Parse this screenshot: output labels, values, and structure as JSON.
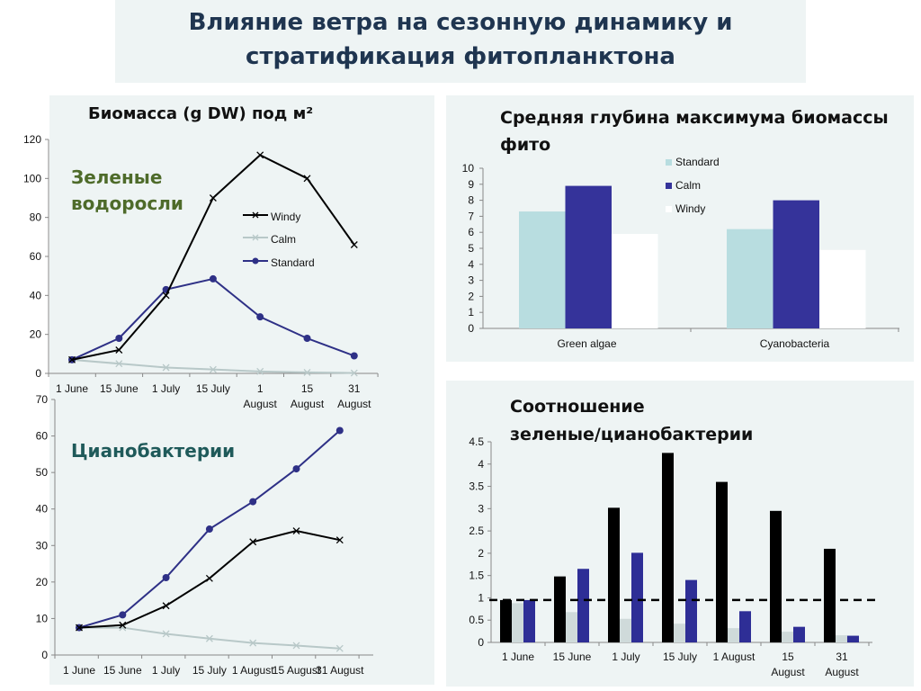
{
  "page": {
    "title_line1": "Влияние ветра на сезонную динамику и",
    "title_line2": "стратификация фитопланктона"
  },
  "colors": {
    "panel_bg": "#eef4f4",
    "windy": "#000000",
    "calm": "#b8c8c8",
    "standard": "#2e3086",
    "bar_standard": "#b8dde0",
    "bar_calm": "#35339a",
    "bar_windy": "#ffffff",
    "ratio_windy": "#000000",
    "ratio_calm": "#cfdada",
    "ratio_standard": "#2e2e96"
  },
  "left_panel": {
    "title": "Биомасса (g DW) под м²",
    "green_label": "Зеленые водоросли",
    "cyano_label": "Цианобактерии"
  },
  "right_top": {
    "title_line1": "Средняя глубина максимума биомассы",
    "title_line2": "фито"
  },
  "right_bottom": {
    "title_line1": "Соотношение",
    "title_line2": "зеленые/цианобактерии"
  },
  "chart_data": [
    {
      "type": "line",
      "categories": [
        "1 June",
        "15 June",
        "1 July",
        "15 July",
        "1 August",
        "15 August",
        "31 August"
      ],
      "ylim": [
        0,
        120
      ],
      "yticks": [
        0,
        20,
        40,
        60,
        80,
        100,
        120
      ],
      "legend_position": "right",
      "series": [
        {
          "name": "Windy",
          "marker": "x",
          "values": [
            7,
            12,
            40,
            90,
            112,
            100,
            66
          ]
        },
        {
          "name": "Calm",
          "marker": "x",
          "values": [
            7,
            5,
            3,
            2,
            1,
            0.5,
            0.2
          ]
        },
        {
          "name": "Standard",
          "marker": "circle",
          "values": [
            7,
            18,
            43,
            48.5,
            29,
            18,
            9
          ]
        }
      ]
    },
    {
      "type": "line",
      "categories": [
        "1 June",
        "15 June",
        "1 July",
        "15 July",
        "1 August",
        "15 August",
        "31 August"
      ],
      "ylim": [
        0,
        70
      ],
      "yticks": [
        0,
        10,
        20,
        30,
        40,
        50,
        60,
        70
      ],
      "series": [
        {
          "name": "Windy",
          "marker": "x",
          "values": [
            7.5,
            8.2,
            13.5,
            21,
            31,
            34,
            31.5
          ]
        },
        {
          "name": "Calm",
          "marker": "x",
          "values": [
            7.5,
            7.5,
            5.8,
            4.5,
            3.3,
            2.6,
            1.8
          ]
        },
        {
          "name": "Standard",
          "marker": "circle",
          "values": [
            7.5,
            11,
            21.2,
            34.5,
            42,
            51,
            61.5
          ]
        }
      ]
    },
    {
      "type": "bar",
      "categories": [
        "Green algae",
        "Cyanobacteria"
      ],
      "ylim": [
        0,
        10
      ],
      "yticks": [
        0,
        1,
        2,
        3,
        4,
        5,
        6,
        7,
        8,
        9,
        10
      ],
      "legend_position": "top-right",
      "series": [
        {
          "name": "Standard",
          "values": [
            7.3,
            6.2
          ]
        },
        {
          "name": "Calm",
          "values": [
            8.9,
            8.0
          ]
        },
        {
          "name": "Windy",
          "values": [
            5.9,
            4.9
          ]
        }
      ]
    },
    {
      "type": "bar",
      "categories": [
        "1 June",
        "15 June",
        "1 July",
        "15 July",
        "1 August",
        "15 August",
        "31 August"
      ],
      "ylim": [
        0,
        4.5
      ],
      "yticks": [
        "0",
        "0.5",
        "1",
        "1.5",
        "2",
        "2.5",
        "3",
        "3.5",
        "4",
        "4.5"
      ],
      "reference_line": 0.95,
      "series": [
        {
          "values": [
            0.95,
            1.48,
            3.02,
            4.25,
            3.6,
            2.95,
            2.1
          ]
        },
        {
          "values": [
            0.88,
            0.68,
            0.53,
            0.42,
            0.32,
            0.24,
            0.16
          ]
        },
        {
          "values": [
            0.95,
            1.65,
            2.01,
            1.4,
            0.7,
            0.35,
            0.15
          ]
        }
      ]
    }
  ]
}
